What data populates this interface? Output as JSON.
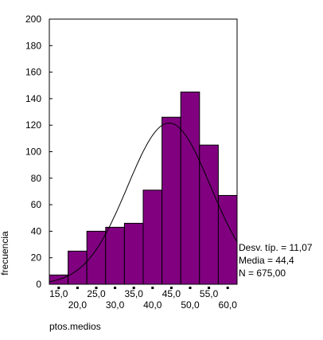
{
  "chart_data": {
    "type": "bar",
    "ylabel": "frecuencia",
    "xlabel": "ptos.medios",
    "ylim": [
      0,
      200
    ],
    "y_ticks": [
      "0",
      "20",
      "40",
      "60",
      "80",
      "100",
      "120",
      "140",
      "160",
      "180",
      "200"
    ],
    "x_ticks_row1": [
      "15,0",
      "25,0",
      "35,0",
      "45,0",
      "55,0"
    ],
    "x_ticks_row2": [
      "20,0",
      "30,0",
      "40,0",
      "50,0",
      "60,0"
    ],
    "categories": [
      "15,0",
      "20,0",
      "25,0",
      "30,0",
      "35,0",
      "40,0",
      "45,0",
      "50,0",
      "55,0",
      "60,0"
    ],
    "values": [
      7,
      25,
      40,
      43,
      46,
      71,
      126,
      145,
      105,
      67
    ],
    "bar_color": "#800080",
    "curve": {
      "type": "normal",
      "mean": 44.4,
      "sd": 11.07,
      "n": 675
    },
    "stats": {
      "sd_label": "Desv. típ. = 11,07",
      "mean_label": "Media = 44,4",
      "n_label": "N = 675,00"
    }
  }
}
